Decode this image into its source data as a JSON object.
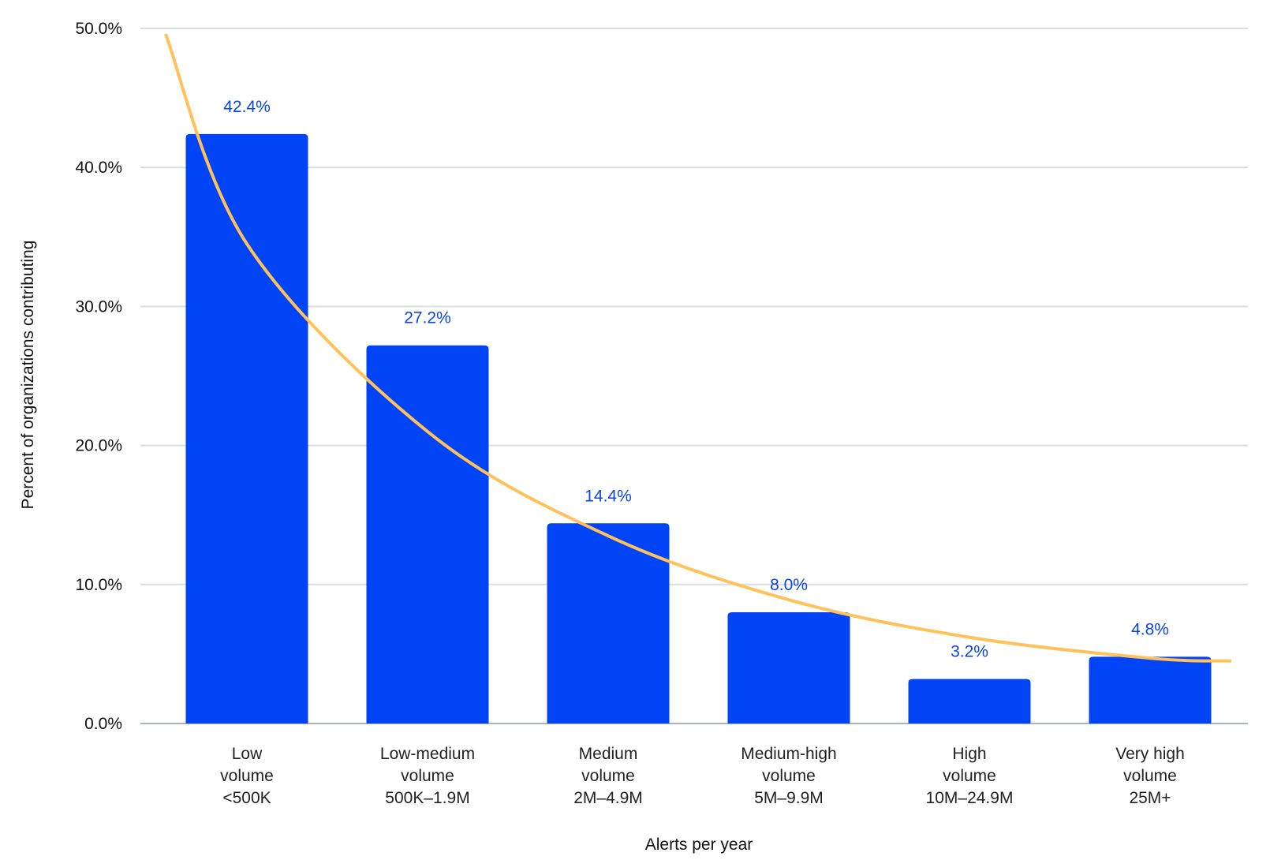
{
  "chart_data": {
    "type": "bar",
    "title": "",
    "xlabel": "Alerts per year",
    "ylabel": "Percent of organizations contributing",
    "ylim": [
      0,
      50
    ],
    "yticks": [
      0,
      10,
      20,
      30,
      40,
      50
    ],
    "ytick_labels": [
      "0.0%",
      "10.0%",
      "20.0%",
      "30.0%",
      "40.0%",
      "50.0%"
    ],
    "grid": true,
    "categories": [
      [
        "Low",
        "volume",
        "<500K"
      ],
      [
        "Low-medium",
        "volume",
        "500K–1.9M"
      ],
      [
        "Medium",
        "volume",
        "2M–4.9M"
      ],
      [
        "Medium-high",
        "volume",
        "5M–9.9M"
      ],
      [
        "High",
        "volume",
        "10M–24.9M"
      ],
      [
        "Very high",
        "volume",
        "25M+"
      ]
    ],
    "values": [
      42.4,
      27.2,
      14.4,
      8.0,
      3.2,
      4.8
    ],
    "data_labels": [
      "42.4%",
      "27.2%",
      "14.4%",
      "8.0%",
      "3.2%",
      "4.8%"
    ],
    "trendline": {
      "type": "curve",
      "points": [
        [
          -0.45,
          49.6
        ],
        [
          0.0,
          34.5
        ],
        [
          1.0,
          21.0
        ],
        [
          2.0,
          13.5
        ],
        [
          3.0,
          8.9
        ],
        [
          4.0,
          6.2
        ],
        [
          5.0,
          4.7
        ],
        [
          5.45,
          4.5
        ]
      ]
    },
    "colors": {
      "bar": "#0044f5",
      "data_label": "#0a45e6",
      "trendline": "#ffc15a",
      "grid": "#d9dee2"
    }
  }
}
